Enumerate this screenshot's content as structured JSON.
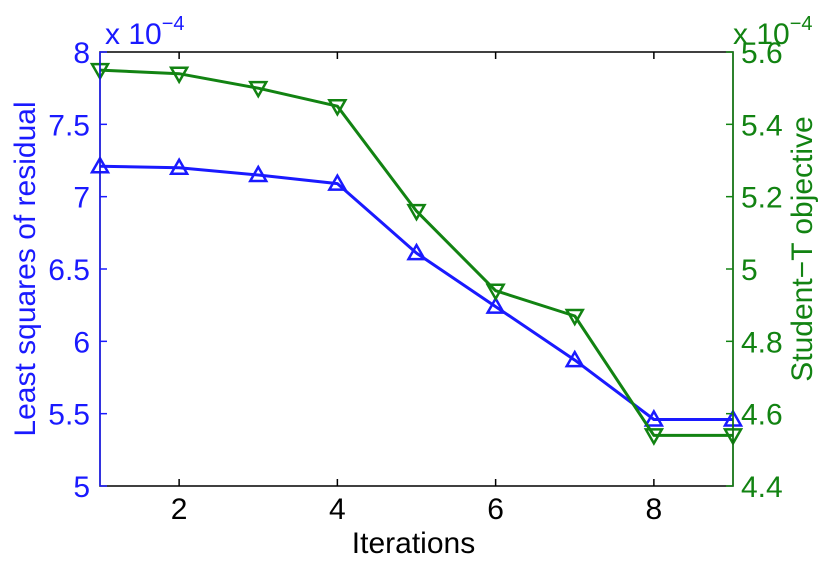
{
  "chart_data": {
    "type": "line",
    "title": "",
    "xlabel": "Iterations",
    "x": [
      1,
      2,
      3,
      4,
      5,
      6,
      7,
      8,
      9
    ],
    "xlim": [
      1,
      9
    ],
    "xticks": [
      2,
      4,
      6,
      8
    ],
    "grid": false,
    "legend": "none",
    "left_axis": {
      "label": "Least squares of residual",
      "color": "#1a1aff",
      "lim": [
        5,
        8
      ],
      "ticks": [
        "5",
        "5.5",
        "6",
        "6.5",
        "7",
        "7.5",
        "8"
      ],
      "multiplier_base": "x 10",
      "multiplier_exp": "−4"
    },
    "right_axis": {
      "label": "Student−T objective",
      "color": "#128312",
      "lim": [
        4.4,
        5.6
      ],
      "ticks": [
        "4.4",
        "4.6",
        "4.8",
        "5",
        "5.2",
        "5.4",
        "5.6"
      ],
      "multiplier_base": "x 10",
      "multiplier_exp": "−4"
    },
    "series": [
      {
        "axis": "left",
        "color": "#1a1aff",
        "marker": "triangle-up",
        "values": [
          7.21,
          7.2,
          7.15,
          7.09,
          6.61,
          6.24,
          5.87,
          5.46,
          5.46
        ]
      },
      {
        "axis": "right",
        "color": "#128312",
        "marker": "triangle-down",
        "values": [
          5.55,
          5.54,
          5.5,
          5.45,
          5.16,
          4.94,
          4.87,
          4.54,
          4.54
        ]
      }
    ]
  }
}
